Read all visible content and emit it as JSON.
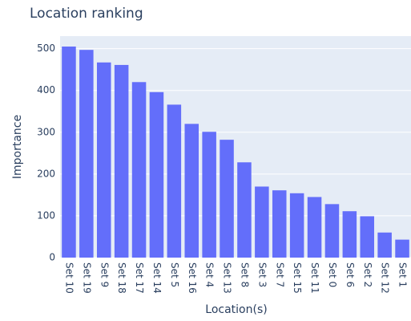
{
  "chart_data": {
    "type": "bar",
    "title": "Location ranking",
    "x_label": "Location(s)",
    "y_label": "Importance",
    "categories": [
      "Set 10",
      "Set 19",
      "Set 9",
      "Set 18",
      "Set 17",
      "Set 14",
      "Set 5",
      "Set 16",
      "Set 4",
      "Set 13",
      "Set 8",
      "Set 3",
      "Set 7",
      "Set 15",
      "Set 11",
      "Set 0",
      "Set 6",
      "Set 2",
      "Set 12",
      "Set 1"
    ],
    "values": [
      505,
      497,
      467,
      461,
      420,
      396,
      366,
      320,
      301,
      282,
      228,
      170,
      161,
      154,
      145,
      128,
      111,
      99,
      60,
      43
    ],
    "color": "#636efa",
    "ylim": [
      0,
      530
    ],
    "yticks": [
      0,
      100,
      200,
      300,
      400,
      500
    ],
    "grid": true
  }
}
